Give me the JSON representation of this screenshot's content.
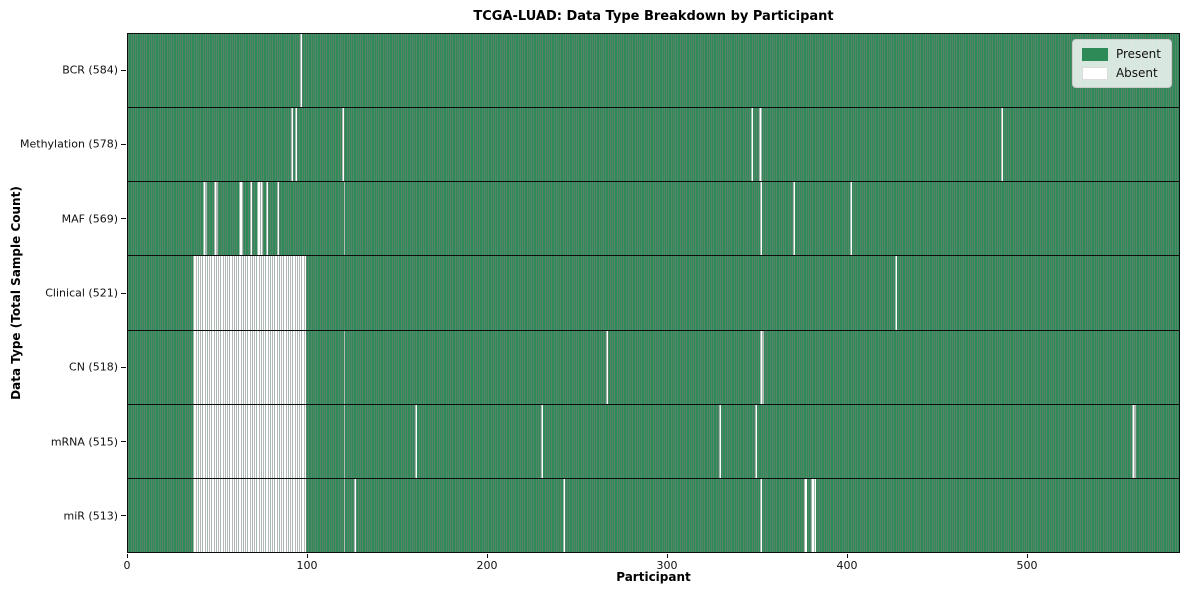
{
  "chart_data": {
    "type": "heatmap",
    "title": "TCGA-LUAD: Data Type Breakdown by Participant",
    "xlabel": "Participant",
    "ylabel": "Data Type (Total Sample Count)",
    "x_max": 585,
    "x_ticks": [
      0,
      100,
      200,
      300,
      400,
      500
    ],
    "grid": false,
    "legend_position": "upper right",
    "legend": [
      {
        "label": "Present",
        "color": "#2e8b57"
      },
      {
        "label": "Absent",
        "color": "#ffffff"
      }
    ],
    "rows": [
      {
        "label": "BCR (584)",
        "present_count": 584,
        "absent_ranges": [
          [
            96,
            96
          ]
        ]
      },
      {
        "label": "Methylation (578)",
        "present_count": 578,
        "absent_ranges": [
          [
            91,
            91
          ],
          [
            93,
            93
          ],
          [
            119,
            119
          ],
          [
            347,
            347
          ],
          [
            351,
            352
          ],
          [
            486,
            486
          ]
        ]
      },
      {
        "label": "MAF (569)",
        "present_count": 569,
        "absent_ranges": [
          [
            42,
            43
          ],
          [
            48,
            49
          ],
          [
            62,
            63
          ],
          [
            68,
            68
          ],
          [
            72,
            74
          ],
          [
            77,
            77
          ],
          [
            83,
            83
          ],
          [
            120,
            120
          ],
          [
            352,
            352
          ],
          [
            370,
            370
          ],
          [
            402,
            402
          ]
        ]
      },
      {
        "label": "Clinical (521)",
        "present_count": 521,
        "absent_ranges": [
          [
            36,
            98
          ],
          [
            427,
            427
          ]
        ]
      },
      {
        "label": "CN (518)",
        "present_count": 518,
        "absent_ranges": [
          [
            36,
            98
          ],
          [
            120,
            120
          ],
          [
            266,
            266
          ],
          [
            352,
            353
          ]
        ]
      },
      {
        "label": "mRNA (515)",
        "present_count": 515,
        "absent_ranges": [
          [
            36,
            98
          ],
          [
            120,
            120
          ],
          [
            160,
            160
          ],
          [
            230,
            230
          ],
          [
            329,
            329
          ],
          [
            349,
            349
          ],
          [
            559,
            560
          ]
        ]
      },
      {
        "label": "miR (513)",
        "present_count": 513,
        "absent_ranges": [
          [
            36,
            98
          ],
          [
            120,
            120
          ],
          [
            126,
            126
          ],
          [
            242,
            242
          ],
          [
            352,
            352
          ],
          [
            376,
            377
          ],
          [
            380,
            382
          ]
        ]
      }
    ]
  }
}
